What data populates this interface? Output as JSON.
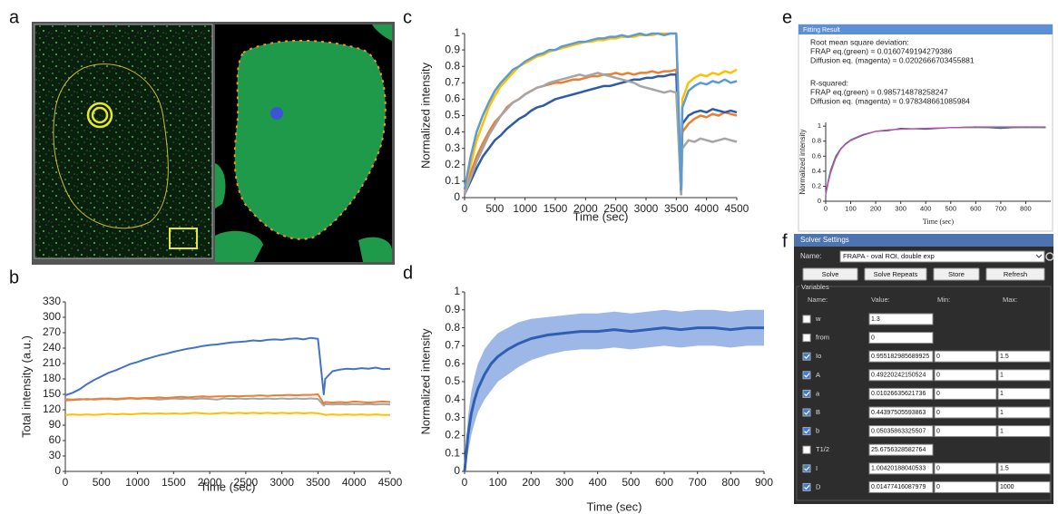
{
  "panel_labels": [
    "a",
    "b",
    "c",
    "d",
    "e",
    "f"
  ],
  "chart_data": [
    {
      "type": "line",
      "xlabel": "Time (sec)",
      "ylabel": "Total intensity (a.u.)",
      "xlim": [
        0,
        4500
      ],
      "ylim": [
        0,
        330
      ],
      "xticks": [
        0,
        500,
        1000,
        1500,
        2000,
        2500,
        3000,
        3500,
        4000,
        4500
      ],
      "yticks": [
        0,
        30,
        60,
        90,
        120,
        150,
        180,
        210,
        240,
        270,
        300,
        330
      ],
      "x": [
        0,
        100,
        200,
        300,
        400,
        500,
        600,
        700,
        800,
        900,
        1000,
        1100,
        1200,
        1300,
        1400,
        1500,
        1600,
        1700,
        1800,
        1900,
        2000,
        2100,
        2200,
        2300,
        2400,
        2500,
        2600,
        2700,
        2800,
        2900,
        3000,
        3100,
        3200,
        3300,
        3400,
        3500,
        3580,
        3600,
        3700,
        3800,
        3900,
        4000,
        4100,
        4200,
        4300,
        4400,
        4500
      ],
      "series": [
        {
          "color": "#ffc000",
          "values": [
            110,
            111,
            110,
            111,
            110,
            111,
            112,
            111,
            112,
            111,
            112,
            113,
            112,
            113,
            112,
            113,
            112,
            113,
            114,
            113,
            112,
            113,
            114,
            113,
            114,
            113,
            114,
            113,
            114,
            113,
            114,
            113,
            114,
            113,
            114,
            113,
            111,
            110,
            111,
            110,
            111,
            110,
            111,
            110,
            111,
            110,
            110
          ]
        },
        {
          "color": "#a5a5a5",
          "values": [
            141,
            140,
            141,
            140,
            141,
            142,
            141,
            140,
            141,
            142,
            141,
            142,
            141,
            140,
            141,
            142,
            141,
            142,
            141,
            142,
            141,
            140,
            142,
            141,
            142,
            141,
            142,
            141,
            142,
            141,
            142,
            141,
            142,
            141,
            142,
            141,
            128,
            131,
            130,
            131,
            130,
            131,
            130,
            131,
            130,
            131,
            130
          ]
        },
        {
          "color": "#ed7d31",
          "values": [
            138,
            139,
            140,
            141,
            140,
            141,
            142,
            141,
            142,
            143,
            142,
            143,
            143,
            144,
            143,
            144,
            145,
            144,
            145,
            146,
            145,
            146,
            146,
            147,
            146,
            147,
            147,
            148,
            147,
            148,
            148,
            149,
            148,
            149,
            149,
            150,
            132,
            135,
            134,
            135,
            134,
            136,
            135,
            134,
            135,
            136,
            135
          ]
        },
        {
          "color": "#4472c4",
          "values": [
            148,
            153,
            160,
            170,
            178,
            185,
            192,
            197,
            203,
            209,
            213,
            218,
            222,
            226,
            229,
            233,
            236,
            239,
            241,
            244,
            246,
            247,
            249,
            251,
            252,
            253,
            255,
            254,
            256,
            257,
            256,
            258,
            259,
            257,
            260,
            258,
            150,
            180,
            195,
            198,
            200,
            199,
            201,
            200,
            202,
            199,
            200
          ]
        }
      ]
    },
    {
      "type": "line",
      "xlabel": "Time (sec)",
      "ylabel": "Normalized intensity",
      "xlim": [
        0,
        4500
      ],
      "ylim": [
        0,
        1
      ],
      "xticks": [
        0,
        500,
        1000,
        1500,
        2000,
        2500,
        3000,
        3500,
        4000,
        4500
      ],
      "yticks": [
        0,
        0.1,
        0.2,
        0.3,
        0.4,
        0.5,
        0.6,
        0.7,
        0.8,
        0.9,
        1
      ],
      "x": [
        0,
        100,
        200,
        300,
        400,
        500,
        600,
        700,
        800,
        900,
        1000,
        1100,
        1200,
        1300,
        1400,
        1500,
        1600,
        1700,
        1800,
        1900,
        2000,
        2100,
        2200,
        2300,
        2400,
        2500,
        2600,
        2700,
        2800,
        2900,
        3000,
        3100,
        3200,
        3300,
        3400,
        3500,
        3580,
        3600,
        3700,
        3800,
        3900,
        4000,
        4100,
        4200,
        4300,
        4400,
        4500
      ],
      "series": [
        {
          "color": "#ed7d31",
          "values": [
            0.03,
            0.15,
            0.25,
            0.33,
            0.4,
            0.46,
            0.5,
            0.55,
            0.58,
            0.6,
            0.63,
            0.65,
            0.67,
            0.68,
            0.69,
            0.7,
            0.7,
            0.71,
            0.72,
            0.72,
            0.73,
            0.74,
            0.74,
            0.75,
            0.75,
            0.76,
            0.75,
            0.76,
            0.75,
            0.76,
            0.76,
            0.77,
            0.76,
            0.77,
            0.77,
            0.78,
            0.03,
            0.4,
            0.45,
            0.48,
            0.5,
            0.49,
            0.51,
            0.5,
            0.52,
            0.51,
            0.5
          ]
        },
        {
          "color": "#2e5aa8",
          "values": [
            0.02,
            0.1,
            0.18,
            0.25,
            0.3,
            0.35,
            0.38,
            0.42,
            0.45,
            0.48,
            0.5,
            0.53,
            0.55,
            0.56,
            0.58,
            0.6,
            0.61,
            0.62,
            0.63,
            0.64,
            0.65,
            0.66,
            0.67,
            0.68,
            0.68,
            0.69,
            0.7,
            0.71,
            0.72,
            0.72,
            0.73,
            0.73,
            0.74,
            0.74,
            0.75,
            0.75,
            0.02,
            0.45,
            0.5,
            0.52,
            0.53,
            0.52,
            0.54,
            0.53,
            0.52,
            0.53,
            0.52
          ]
        },
        {
          "color": "#a5a5a5",
          "values": [
            0.02,
            0.12,
            0.22,
            0.3,
            0.38,
            0.44,
            0.5,
            0.54,
            0.58,
            0.6,
            0.63,
            0.65,
            0.67,
            0.68,
            0.7,
            0.71,
            0.72,
            0.73,
            0.74,
            0.75,
            0.74,
            0.75,
            0.76,
            0.75,
            0.74,
            0.73,
            0.72,
            0.71,
            0.7,
            0.68,
            0.67,
            0.66,
            0.65,
            0.64,
            0.65,
            0.64,
            0.02,
            0.3,
            0.35,
            0.34,
            0.36,
            0.35,
            0.34,
            0.35,
            0.36,
            0.35,
            0.34
          ]
        },
        {
          "color": "#ffc000",
          "values": [
            0.05,
            0.2,
            0.35,
            0.45,
            0.55,
            0.62,
            0.68,
            0.72,
            0.76,
            0.8,
            0.82,
            0.84,
            0.86,
            0.87,
            0.89,
            0.9,
            0.91,
            0.92,
            0.93,
            0.94,
            0.95,
            0.95,
            0.96,
            0.96,
            0.97,
            0.97,
            0.98,
            0.98,
            0.98,
            0.99,
            0.99,
            0.99,
            1,
            1,
            1,
            1,
            0.05,
            0.6,
            0.7,
            0.73,
            0.75,
            0.74,
            0.76,
            0.75,
            0.77,
            0.76,
            0.78
          ]
        },
        {
          "color": "#5b9bd5",
          "values": [
            0.05,
            0.25,
            0.4,
            0.5,
            0.58,
            0.65,
            0.7,
            0.74,
            0.78,
            0.8,
            0.83,
            0.85,
            0.87,
            0.88,
            0.9,
            0.9,
            0.92,
            0.93,
            0.94,
            0.95,
            0.95,
            0.96,
            0.97,
            0.97,
            0.98,
            0.98,
            0.99,
            0.98,
            0.99,
            1,
            0.99,
            1,
            1,
            0.99,
            1,
            1,
            0.05,
            0.55,
            0.65,
            0.68,
            0.7,
            0.69,
            0.71,
            0.7,
            0.72,
            0.7,
            0.71
          ]
        }
      ]
    },
    {
      "type": "line",
      "xlabel": "Time (sec)",
      "ylabel": "Normalized intensity",
      "xlim": [
        0,
        900
      ],
      "ylim": [
        0,
        1
      ],
      "xticks": [
        0,
        100,
        200,
        300,
        400,
        500,
        600,
        700,
        800,
        900
      ],
      "yticks": [
        0,
        0.1,
        0.2,
        0.3,
        0.4,
        0.5,
        0.6,
        0.7,
        0.8,
        0.9,
        1
      ],
      "x": [
        0,
        10,
        20,
        30,
        40,
        60,
        80,
        100,
        130,
        160,
        200,
        250,
        300,
        350,
        400,
        450,
        500,
        550,
        600,
        650,
        700,
        750,
        800,
        850,
        900
      ],
      "series": [
        {
          "color": "#2f5fb3",
          "band_color": "#9db8e6",
          "values": [
            0,
            0.2,
            0.32,
            0.4,
            0.46,
            0.54,
            0.6,
            0.64,
            0.68,
            0.71,
            0.74,
            0.76,
            0.77,
            0.78,
            0.78,
            0.79,
            0.78,
            0.79,
            0.8,
            0.79,
            0.8,
            0.8,
            0.79,
            0.8,
            0.8
          ],
          "lower": [
            0,
            0.1,
            0.2,
            0.27,
            0.33,
            0.4,
            0.45,
            0.5,
            0.54,
            0.58,
            0.62,
            0.65,
            0.67,
            0.68,
            0.68,
            0.69,
            0.68,
            0.69,
            0.7,
            0.69,
            0.7,
            0.7,
            0.69,
            0.7,
            0.7
          ],
          "upper": [
            0,
            0.3,
            0.44,
            0.53,
            0.6,
            0.68,
            0.73,
            0.77,
            0.8,
            0.83,
            0.85,
            0.86,
            0.87,
            0.88,
            0.88,
            0.89,
            0.88,
            0.89,
            0.9,
            0.89,
            0.9,
            0.9,
            0.89,
            0.9,
            0.9
          ]
        }
      ]
    },
    {
      "type": "line",
      "xlabel": "Time (sec)",
      "ylabel": "Normalized intensity",
      "xlim": [
        0,
        900
      ],
      "ylim": [
        0,
        1.05
      ],
      "xticks": [
        0,
        100,
        200,
        300,
        400,
        500,
        600,
        700,
        800
      ],
      "yticks": [
        0,
        0.2,
        0.4,
        0.6,
        0.8,
        1
      ],
      "x": [
        0,
        10,
        20,
        40,
        60,
        80,
        100,
        150,
        200,
        250,
        300,
        400,
        500,
        600,
        700,
        800,
        880
      ],
      "series": [
        {
          "color": "#2e5aa8",
          "values": [
            0.1,
            0.28,
            0.42,
            0.6,
            0.7,
            0.76,
            0.81,
            0.88,
            0.93,
            0.94,
            0.97,
            0.96,
            0.98,
            0.99,
            0.97,
            0.99,
            0.98
          ]
        },
        {
          "color": "#2ca05a",
          "values": [
            0.1,
            0.27,
            0.41,
            0.59,
            0.7,
            0.77,
            0.82,
            0.89,
            0.93,
            0.95,
            0.96,
            0.97,
            0.98,
            0.98,
            0.98,
            0.98,
            0.98
          ]
        },
        {
          "color": "#d43fb0",
          "values": [
            0.08,
            0.25,
            0.38,
            0.57,
            0.69,
            0.76,
            0.81,
            0.89,
            0.93,
            0.95,
            0.96,
            0.97,
            0.98,
            0.99,
            0.99,
            0.99,
            0.99
          ]
        }
      ]
    }
  ],
  "fitting_result": {
    "title": "Fitting Result",
    "lines": [
      "Root mean square deviation:",
      "FRAP eq.(green) = 0.0160749194279386",
      "Diffusion eq. (magenta) = 0.0202666703455881",
      "R-squared:",
      "FRAP eq.(green) = 0.985714878258247",
      "Diffusion eq. (magenta) = 0.978348661085984"
    ]
  },
  "solver_settings": {
    "title": "Solver Settings",
    "name_label": "Name:",
    "name_value": "FRAPA - oval ROI, double exp",
    "buttons": [
      "Solve",
      "Solve Repeats",
      "Store",
      "Refresh"
    ],
    "variables_label": "Variables",
    "headers": [
      "Name:",
      "Value:",
      "Min:",
      "Max:"
    ],
    "rows": [
      {
        "name": "w",
        "checked": false,
        "value": "1.3"
      },
      {
        "name": "from",
        "checked": false,
        "value": "0"
      },
      {
        "name": "Io",
        "checked": true,
        "value": "0.955182985689925",
        "min": "0",
        "max": "1.5"
      },
      {
        "name": "A",
        "checked": true,
        "value": "0.49220242150524",
        "min": "0",
        "max": "1"
      },
      {
        "name": "a",
        "checked": true,
        "value": "0.01026635621736",
        "min": "0",
        "max": "1"
      },
      {
        "name": "B",
        "checked": true,
        "value": "0.44397505593863",
        "min": "0",
        "max": "1"
      },
      {
        "name": "b",
        "checked": true,
        "value": "0.05035863325507",
        "min": "0",
        "max": "1"
      },
      {
        "name": "T1/2",
        "checked": false,
        "value": "25.6756328582764"
      },
      {
        "name": "I",
        "checked": true,
        "value": "1.00420188040533",
        "min": "0",
        "max": "1.5"
      },
      {
        "name": "D",
        "checked": true,
        "value": "0.01477416087979",
        "min": "0",
        "max": "1000"
      }
    ]
  }
}
